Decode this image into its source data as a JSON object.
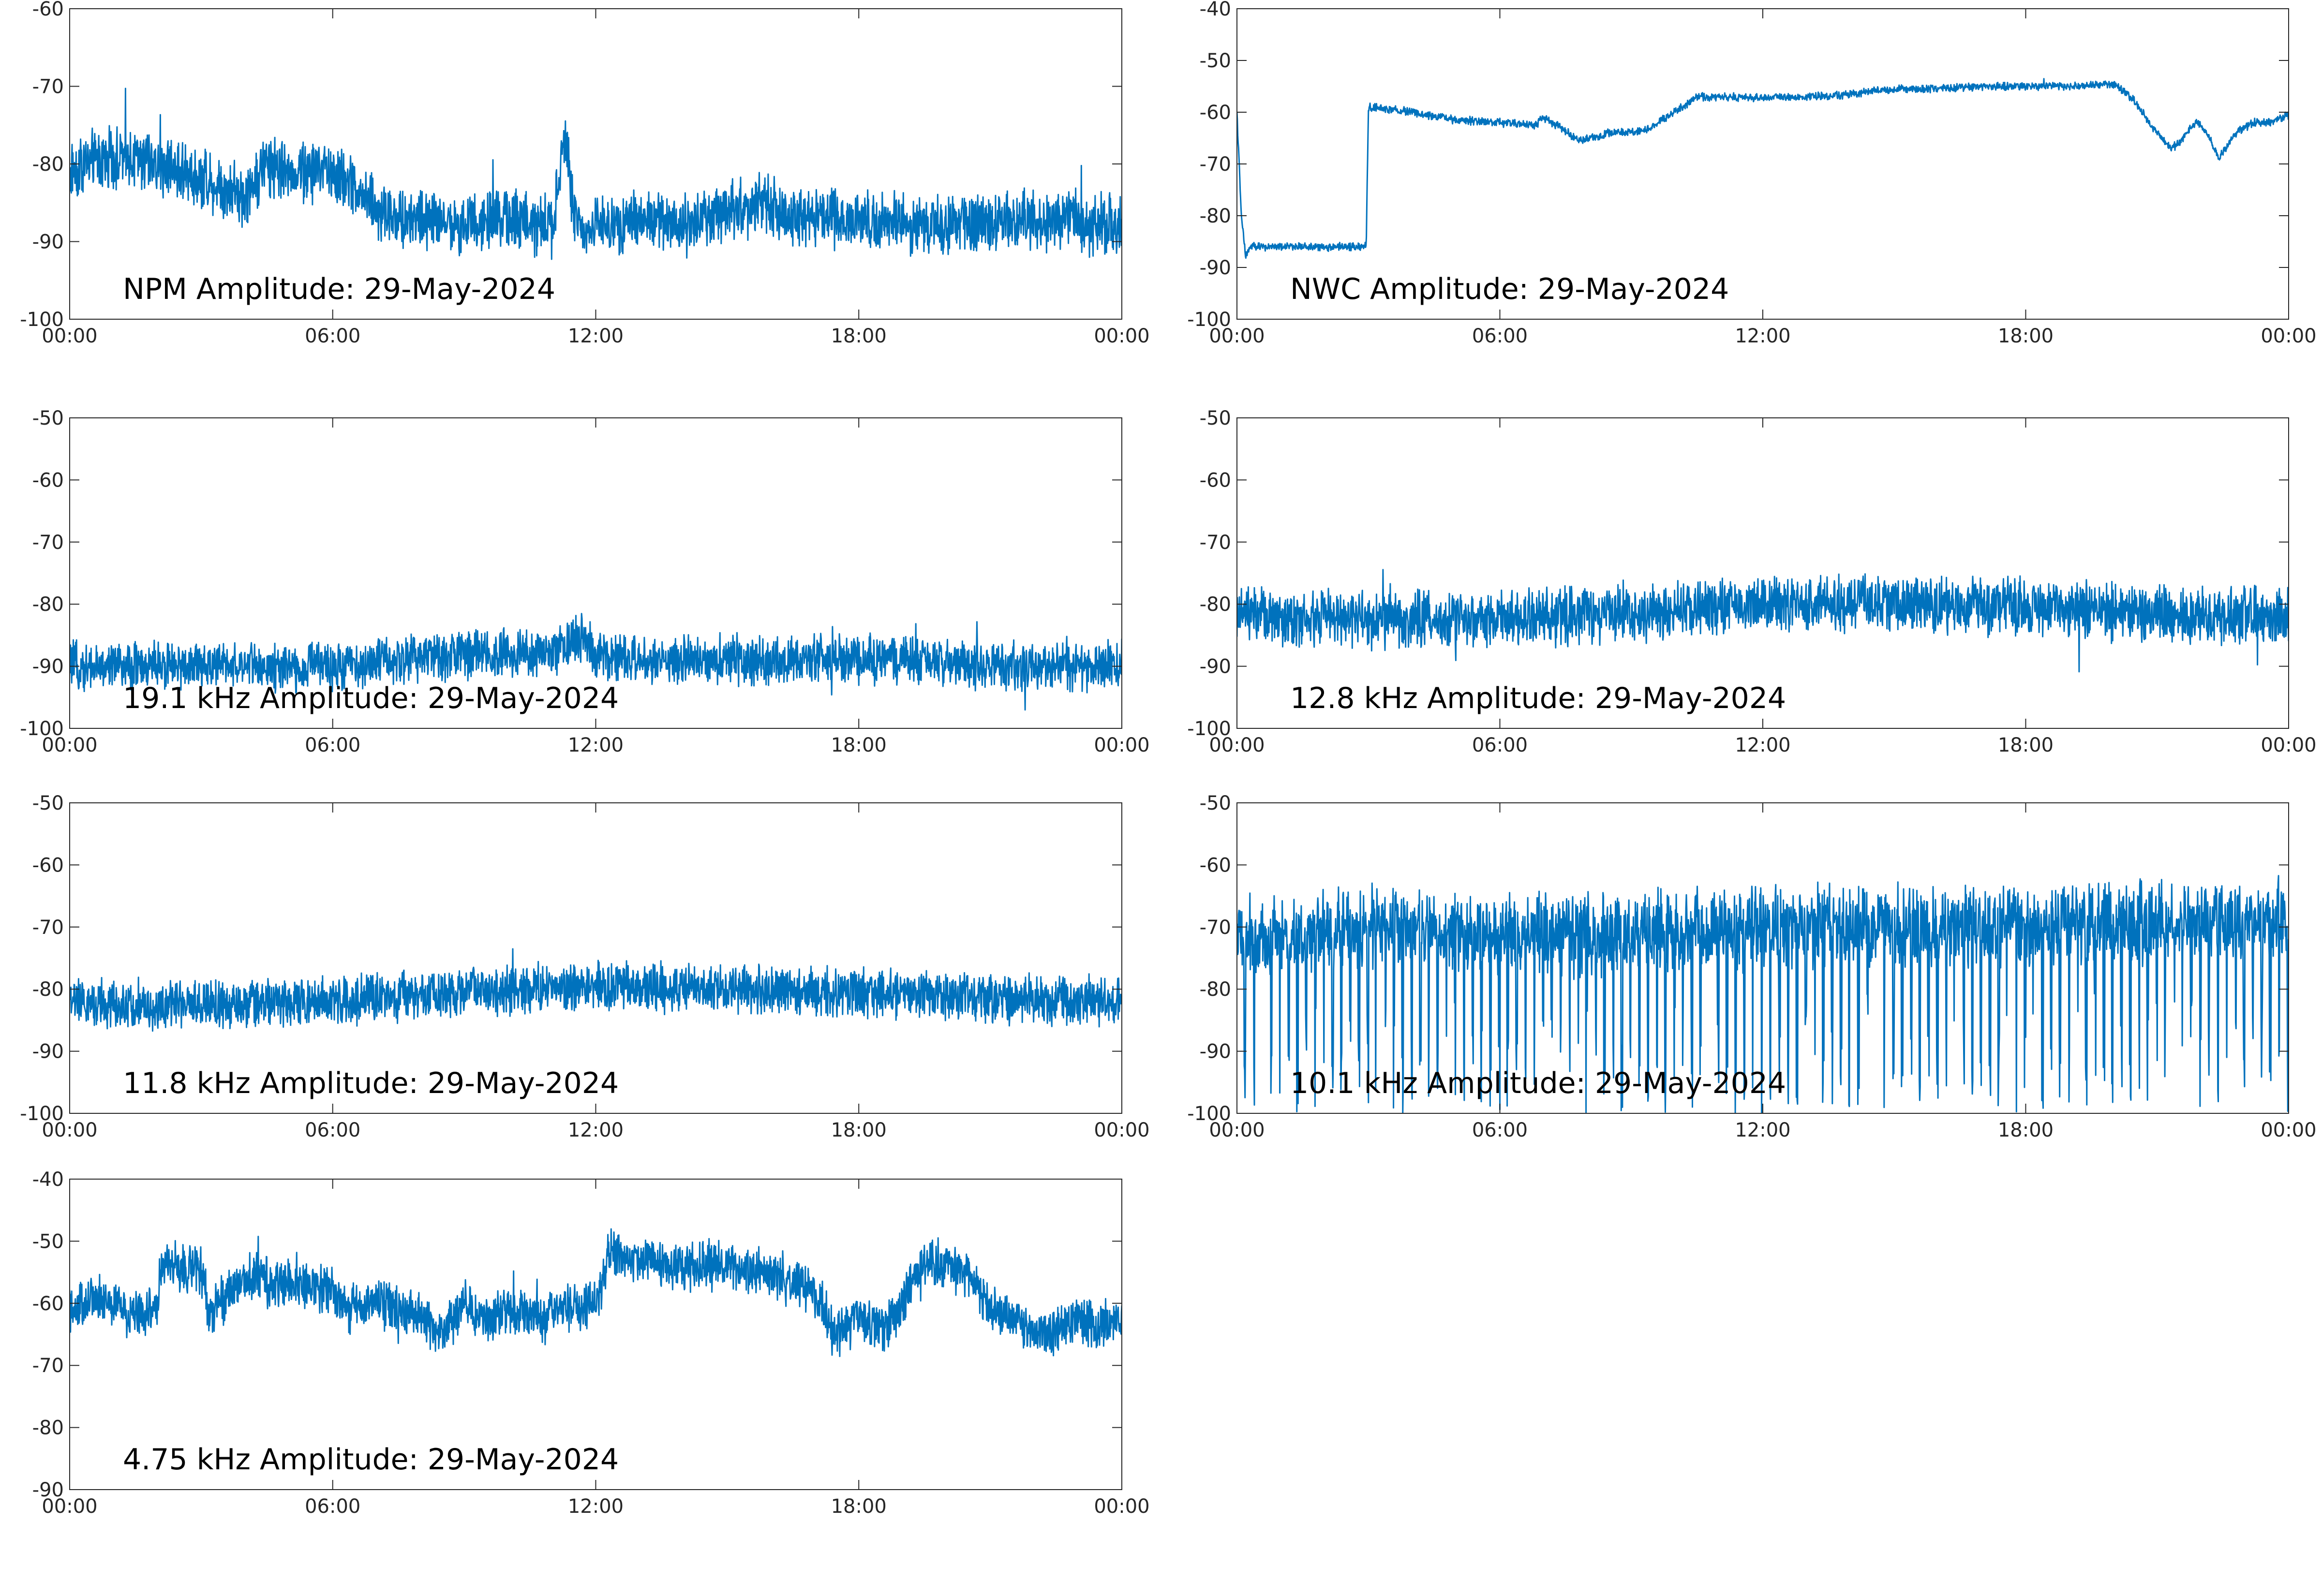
{
  "colors": {
    "series": "#0072BD",
    "axis": "#262626",
    "background": "#FFFFFF"
  },
  "x_ticks": [
    "00:00",
    "06:00",
    "12:00",
    "18:00",
    "00:00"
  ],
  "chart_data": [
    {
      "type": "line",
      "panel": "npm",
      "annotation": "NPM Amplitude: 29-May-2024",
      "x_range": [
        "00:00",
        "24:00"
      ],
      "ylim": [
        -100,
        -60
      ],
      "y_ticks": [
        -100,
        -90,
        -80,
        -70,
        -60
      ],
      "grid": false,
      "series": [
        {
          "noise_amplitude": 3,
          "x": [
            0,
            0.3,
            1,
            2,
            3,
            4,
            4.5,
            5,
            6,
            6.5,
            7,
            8,
            9,
            10,
            11,
            11.3,
            11.5,
            11.7,
            12,
            13,
            14,
            15,
            15.8,
            16.5,
            18,
            20,
            22,
            24
          ],
          "y": [
            -81,
            -80,
            -79,
            -80,
            -82,
            -84,
            -80,
            -81,
            -81,
            -83,
            -86,
            -87,
            -88,
            -87,
            -88,
            -76,
            -87,
            -88,
            -88,
            -87,
            -88,
            -86,
            -85,
            -87,
            -87,
            -88,
            -87,
            -88
          ]
        }
      ]
    },
    {
      "type": "line",
      "panel": "nwc",
      "annotation": "NWC Amplitude: 29-May-2024",
      "x_range": [
        "00:00",
        "24:00"
      ],
      "ylim": [
        -100,
        -40
      ],
      "y_ticks": [
        -100,
        -90,
        -80,
        -70,
        -60,
        -50,
        -40
      ],
      "grid": false,
      "series": [
        {
          "noise_amplitude": 0.6,
          "x": [
            0,
            0.1,
            0.2,
            0.3,
            0.8,
            2.9,
            2.95,
            3,
            4,
            5,
            6,
            6.8,
            7,
            7.4,
            7.8,
            8.5,
            9.3,
            9.8,
            10.5,
            11,
            12,
            13,
            14,
            15,
            16,
            17,
            18,
            19,
            19.8,
            20.1,
            20.5,
            20.9,
            21.3,
            21.5,
            21.9,
            22.2,
            22.4,
            22.8,
            23.2,
            23.6,
            24
          ],
          "y": [
            -60,
            -80,
            -88,
            -86,
            -86,
            -86,
            -86,
            -59,
            -60,
            -61.5,
            -62,
            -62.5,
            -61,
            -63,
            -65.5,
            -64,
            -63.5,
            -61,
            -57,
            -57,
            -57.2,
            -57,
            -56.5,
            -55.5,
            -55.5,
            -55,
            -55,
            -55,
            -54.5,
            -55,
            -58,
            -63,
            -67,
            -66,
            -61.5,
            -65,
            -69,
            -64,
            -62,
            -62,
            -60.5
          ]
        }
      ]
    },
    {
      "type": "line",
      "panel": "19.1",
      "annotation": "19.1 kHz Amplitude: 29-May-2024",
      "x_range": [
        "00:00",
        "24:00"
      ],
      "ylim": [
        -100,
        -50
      ],
      "y_ticks": [
        -100,
        -90,
        -80,
        -70,
        -60,
        -50
      ],
      "grid": false,
      "series": [
        {
          "noise_amplitude": 3,
          "x": [
            0,
            3,
            6,
            9,
            11,
            11.7,
            12,
            13,
            15,
            18,
            21,
            24
          ],
          "y": [
            -90,
            -90,
            -90,
            -88,
            -88,
            -85,
            -88,
            -89,
            -89,
            -89,
            -90,
            -90
          ]
        }
      ]
    },
    {
      "type": "line",
      "panel": "12.8",
      "annotation": "12.8 kHz Amplitude: 29-May-2024",
      "x_range": [
        "00:00",
        "24:00"
      ],
      "ylim": [
        -100,
        -50
      ],
      "y_ticks": [
        -100,
        -90,
        -80,
        -70,
        -60,
        -50
      ],
      "grid": false,
      "series": [
        {
          "noise_amplitude": 3.5,
          "x": [
            0,
            3,
            6,
            9,
            12,
            15,
            18,
            21,
            24
          ],
          "y": [
            -82,
            -82.5,
            -82.5,
            -81.5,
            -80,
            -80,
            -80.5,
            -81.5,
            -82
          ]
        }
      ]
    },
    {
      "type": "line",
      "panel": "11.8",
      "annotation": "11.8 kHz Amplitude: 29-May-2024",
      "x_range": [
        "00:00",
        "24:00"
      ],
      "ylim": [
        -100,
        -50
      ],
      "y_ticks": [
        -100,
        -90,
        -80,
        -70,
        -60,
        -50
      ],
      "grid": false,
      "series": [
        {
          "noise_amplitude": 3,
          "x": [
            0,
            3,
            6,
            9,
            12,
            15,
            18,
            21,
            24
          ],
          "y": [
            -82,
            -82.5,
            -82,
            -80.5,
            -79.5,
            -80,
            -80.5,
            -81.5,
            -82
          ]
        }
      ]
    },
    {
      "type": "line",
      "panel": "10.1",
      "annotation": "10.1 kHz Amplitude: 29-May-2024",
      "x_range": [
        "00:00",
        "24:00"
      ],
      "ylim": [
        -100,
        -50
      ],
      "y_ticks": [
        -100,
        -90,
        -80,
        -70,
        -60,
        -50
      ],
      "grid": false,
      "series": [
        {
          "noise_amplitude": 5,
          "oscillation": {
            "period": 0.2,
            "dip_to": -100
          },
          "x": [
            0,
            3,
            6,
            9,
            12,
            15,
            18,
            21,
            24
          ],
          "y": [
            -72,
            -70,
            -71,
            -71,
            -70,
            -70,
            -70,
            -69,
            -69
          ]
        }
      ]
    },
    {
      "type": "line",
      "panel": "4.75",
      "annotation": "4.75 kHz Amplitude: 29-May-2024",
      "x_range": [
        "00:00",
        "24:00"
      ],
      "ylim": [
        -90,
        -40
      ],
      "y_ticks": [
        -90,
        -80,
        -70,
        -60,
        -50,
        -40
      ],
      "grid": false,
      "series": [
        {
          "noise_amplitude": 3,
          "x": [
            0,
            0.5,
            1,
            1.5,
            2,
            2.1,
            2.5,
            3,
            3.2,
            4,
            5,
            6,
            6.3,
            7,
            8,
            8.5,
            9,
            9.3,
            10,
            10.5,
            11,
            11.5,
            12,
            12.3,
            13,
            14,
            15,
            16,
            17,
            17.5,
            18,
            18.5,
            19,
            19.5,
            20.5,
            21,
            22,
            23,
            23.5,
            24
          ],
          "y": [
            -62,
            -59,
            -60,
            -62,
            -61,
            -53,
            -54,
            -55,
            -62,
            -55,
            -57,
            -58,
            -61,
            -60,
            -62,
            -66,
            -59,
            -63,
            -61,
            -62,
            -62,
            -60,
            -60,
            -52,
            -53,
            -54,
            -54,
            -55,
            -58,
            -65,
            -62,
            -65,
            -60,
            -53,
            -55,
            -61,
            -65,
            -63,
            -64,
            -62
          ]
        }
      ]
    }
  ]
}
